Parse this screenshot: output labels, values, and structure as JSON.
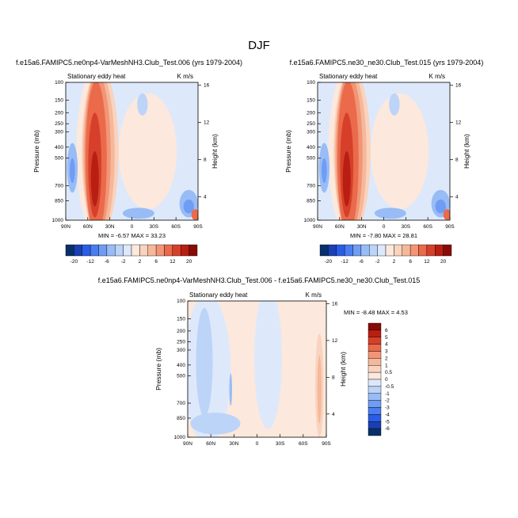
{
  "chart_data": {
    "type": "heatmap",
    "title": "DJF",
    "panels": [
      {
        "id": "p1",
        "title": "f.e15a6.FAMIPC5.ne0np4-VarMeshNH3.Club_Test.006 (yrs 1979-2004)",
        "field": "Stationary eddy heat",
        "units": "K m/s",
        "min_max": "MIN = -6.57  MAX = 33.23",
        "ylabel": "Pressure (mb)",
        "ylabel_right": "Height (km)",
        "xticks": [
          "90N",
          "60N",
          "30N",
          "0",
          "30S",
          "60S",
          "90S"
        ],
        "yticks": [
          "100",
          "150",
          "200",
          "250",
          "300",
          "400",
          "500",
          "700",
          "850",
          "1000"
        ],
        "height_ticks": [
          "16",
          "12",
          "8",
          "4"
        ]
      },
      {
        "id": "p2",
        "title": "f.e15a6.FAMIPC5.ne30_ne30.Club_Test.015 (yrs 1979-2004)",
        "field": "Stationary eddy heat",
        "units": "K m/s",
        "min_max": "MIN = -7.80  MAX = 28.81",
        "ylabel": "Pressure (mb)",
        "ylabel_right": "Height (km)",
        "xticks": [
          "90N",
          "60N",
          "30N",
          "0",
          "30S",
          "60S",
          "90S"
        ],
        "yticks": [
          "100",
          "150",
          "200",
          "250",
          "300",
          "400",
          "500",
          "700",
          "850",
          "1000"
        ],
        "height_ticks": [
          "16",
          "12",
          "8",
          "4"
        ]
      },
      {
        "id": "p3",
        "title": "f.e15a6.FAMIPC5.ne0np4-VarMeshNH3.Club_Test.006 - f.e15a6.FAMIPC5.ne30_ne30.Club_Test.015",
        "field": "Stationary eddy heat",
        "units": "K m/s",
        "min_max": "MIN = -8.48  MAX =  4.53",
        "ylabel": "Pressure (mb)",
        "ylabel_right": "Height (km)",
        "xticks": [
          "90N",
          "60N",
          "30N",
          "0",
          "30S",
          "60S",
          "90S"
        ],
        "yticks": [
          "100",
          "150",
          "200",
          "250",
          "300",
          "400",
          "500",
          "700",
          "850",
          "1000"
        ],
        "height_ticks": [
          "16",
          "12",
          "8",
          "4"
        ]
      }
    ],
    "colorbar_top": {
      "labels": [
        "-20",
        "-12",
        "-6",
        "-2",
        "2",
        "6",
        "12",
        "20"
      ],
      "colors": [
        "#08306b",
        "#1a3fb4",
        "#2b5ce6",
        "#4a7ef0",
        "#6f9df3",
        "#98bcf6",
        "#bcd4f8",
        "#dde9fb",
        "#fce8dc",
        "#f9d3bd",
        "#f6b89a",
        "#f29577",
        "#ea6a4b",
        "#d6402a",
        "#b81f12",
        "#8a0a06"
      ]
    },
    "colorbar_diff": {
      "labels": [
        "6",
        "5",
        "4",
        "3",
        "2",
        "1",
        "0.5",
        "0",
        "-0.5",
        "-1",
        "-2",
        "-3",
        "-4",
        "-5",
        "-6"
      ],
      "colors": [
        "#8a0a06",
        "#b81f12",
        "#d6402a",
        "#ea6a4b",
        "#f29577",
        "#f6b89a",
        "#f9d3bd",
        "#fce8dc",
        "#dde9fb",
        "#bcd4f8",
        "#98bcf6",
        "#6f9df3",
        "#4a7ef0",
        "#2b5ce6",
        "#1a3fb4",
        "#08306b"
      ]
    }
  }
}
